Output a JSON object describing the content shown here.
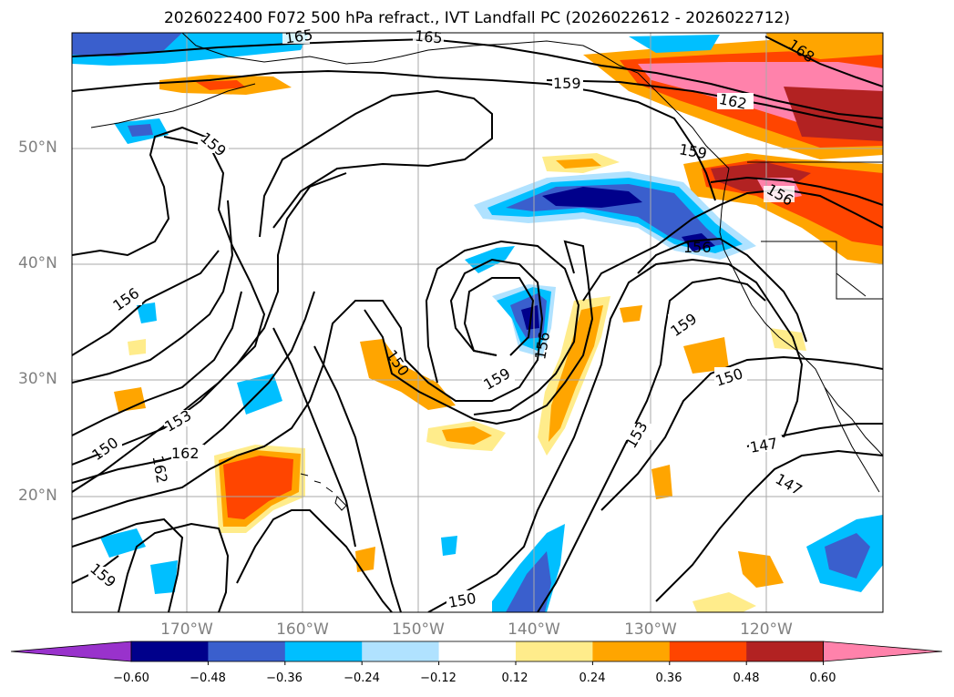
{
  "title": "2026022400 F072 500 hPa refract., IVT Landfall PC (2026022612 - 2026022712)",
  "map": {
    "region": "North-East Pacific",
    "lat_labels": [
      "50°N",
      "40°N",
      "30°N",
      "20°N"
    ],
    "lon_labels": [
      "170°W",
      "160°W",
      "150°W",
      "140°W",
      "130°W",
      "120°W"
    ],
    "contour_labels": [
      {
        "id": "c1",
        "text": "165"
      },
      {
        "id": "c2",
        "text": "165"
      },
      {
        "id": "c3",
        "text": "159"
      },
      {
        "id": "c4",
        "text": "162"
      },
      {
        "id": "c5",
        "text": "168"
      },
      {
        "id": "c6",
        "text": "159"
      },
      {
        "id": "c7",
        "text": "159"
      },
      {
        "id": "c8",
        "text": "156"
      },
      {
        "id": "c9",
        "text": "156"
      },
      {
        "id": "c10",
        "text": "156"
      },
      {
        "id": "c11",
        "text": "159"
      },
      {
        "id": "c12",
        "text": "156"
      },
      {
        "id": "c13",
        "text": "150"
      },
      {
        "id": "c14",
        "text": "159"
      },
      {
        "id": "c15",
        "text": "150"
      },
      {
        "id": "c16",
        "text": "153"
      },
      {
        "id": "c17",
        "text": "150"
      },
      {
        "id": "c18",
        "text": "162"
      },
      {
        "id": "c19",
        "text": "162"
      },
      {
        "id": "c20",
        "text": "153"
      },
      {
        "id": "c21",
        "text": "147"
      },
      {
        "id": "c22",
        "text": "147"
      },
      {
        "id": "c23",
        "text": "159"
      },
      {
        "id": "c24",
        "text": "150"
      }
    ]
  },
  "colorbar": {
    "ticks": [
      "−0.60",
      "−0.48",
      "−0.36",
      "−0.24",
      "−0.12",
      "0.12",
      "0.24",
      "0.36",
      "0.48",
      "0.60"
    ],
    "colors": [
      "#9932cc",
      "#00008b",
      "#3a5fcd",
      "#00bfff",
      "#b0e2ff",
      "#ffffff",
      "#ffec8b",
      "#ffa500",
      "#ff4500",
      "#b22222",
      "#ff82ab"
    ]
  }
}
